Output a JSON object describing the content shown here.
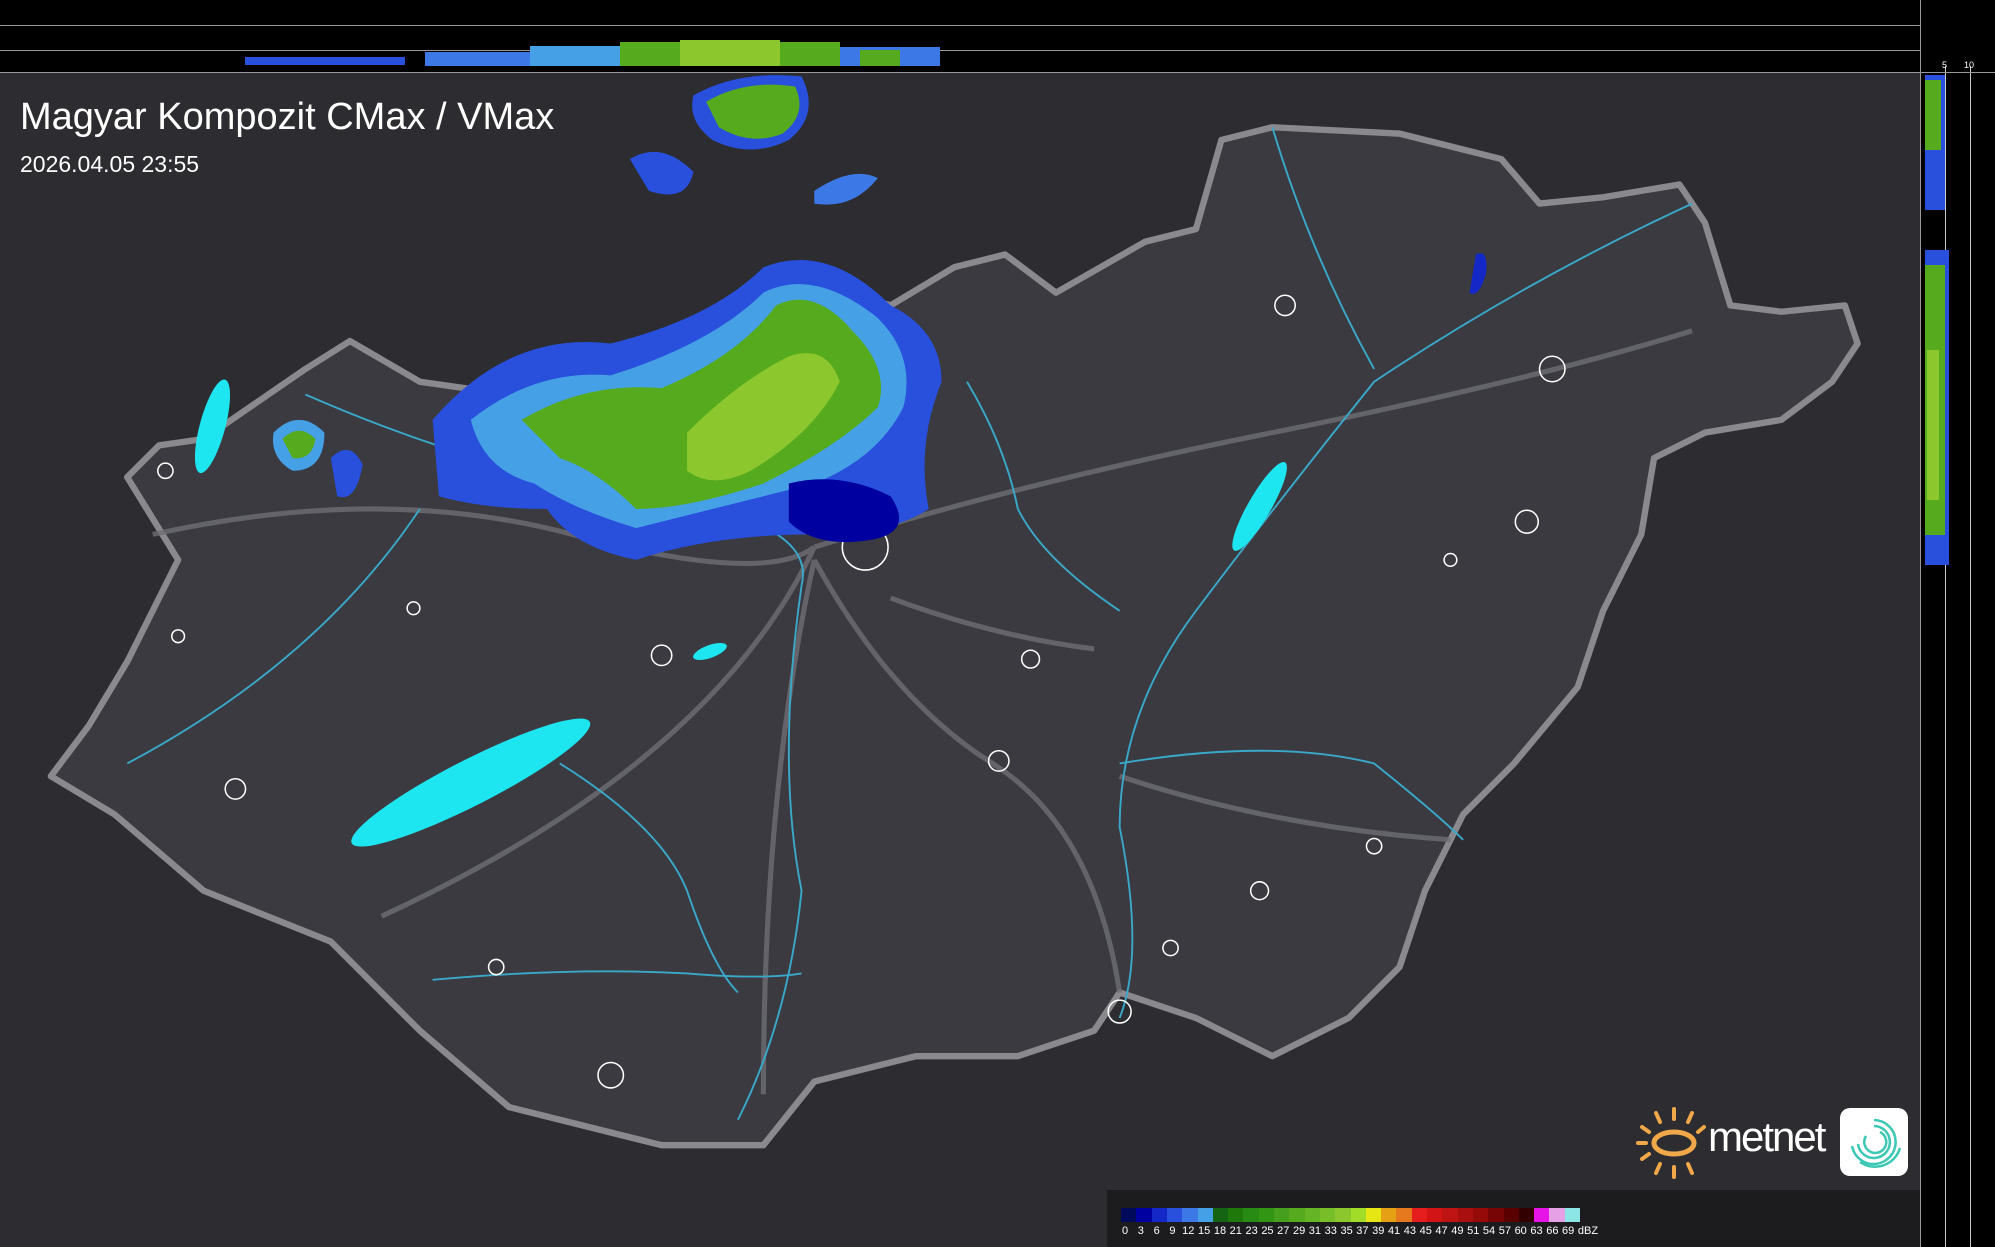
{
  "header": {
    "title": "Magyar Kompozit CMax / VMax",
    "timestamp": "2026.04.05 23:55"
  },
  "profile_top": {
    "ticks": [
      "10",
      "5"
    ]
  },
  "profile_right": {
    "ticks": [
      "5",
      "10"
    ]
  },
  "logo": {
    "text": "metnet",
    "sun_color": "#f0a848",
    "swirl_color": "#3cc8b4"
  },
  "legend": {
    "unit": "dBZ",
    "labels": [
      "0",
      "3",
      "6",
      "9",
      "12",
      "15",
      "18",
      "21",
      "23",
      "25",
      "27",
      "29",
      "31",
      "33",
      "35",
      "37",
      "39",
      "41",
      "43",
      "45",
      "47",
      "49",
      "51",
      "54",
      "57",
      "60",
      "63",
      "66",
      "69"
    ],
    "colors": [
      "#000a5a",
      "#0000a0",
      "#1428c8",
      "#2850dc",
      "#3c78e6",
      "#46a0e6",
      "#146414",
      "#1e780a",
      "#288c14",
      "#329614",
      "#46a01e",
      "#55aa1e",
      "#64b423",
      "#78be28",
      "#8cc82d",
      "#a0dc28",
      "#e6e614",
      "#e6a014",
      "#e6781e",
      "#e61e1e",
      "#d21414",
      "#be1414",
      "#aa0f0f",
      "#960a0a",
      "#780505",
      "#5a0000",
      "#320000",
      "#e614e6",
      "#e6a0e6",
      "#8ce6e6"
    ]
  },
  "colors": {
    "country": "#3a3a40",
    "border": "#8a8a8e",
    "rivers": "#3aa8c8",
    "lakes": "#1ee6f0",
    "cities": "#ffffff"
  }
}
